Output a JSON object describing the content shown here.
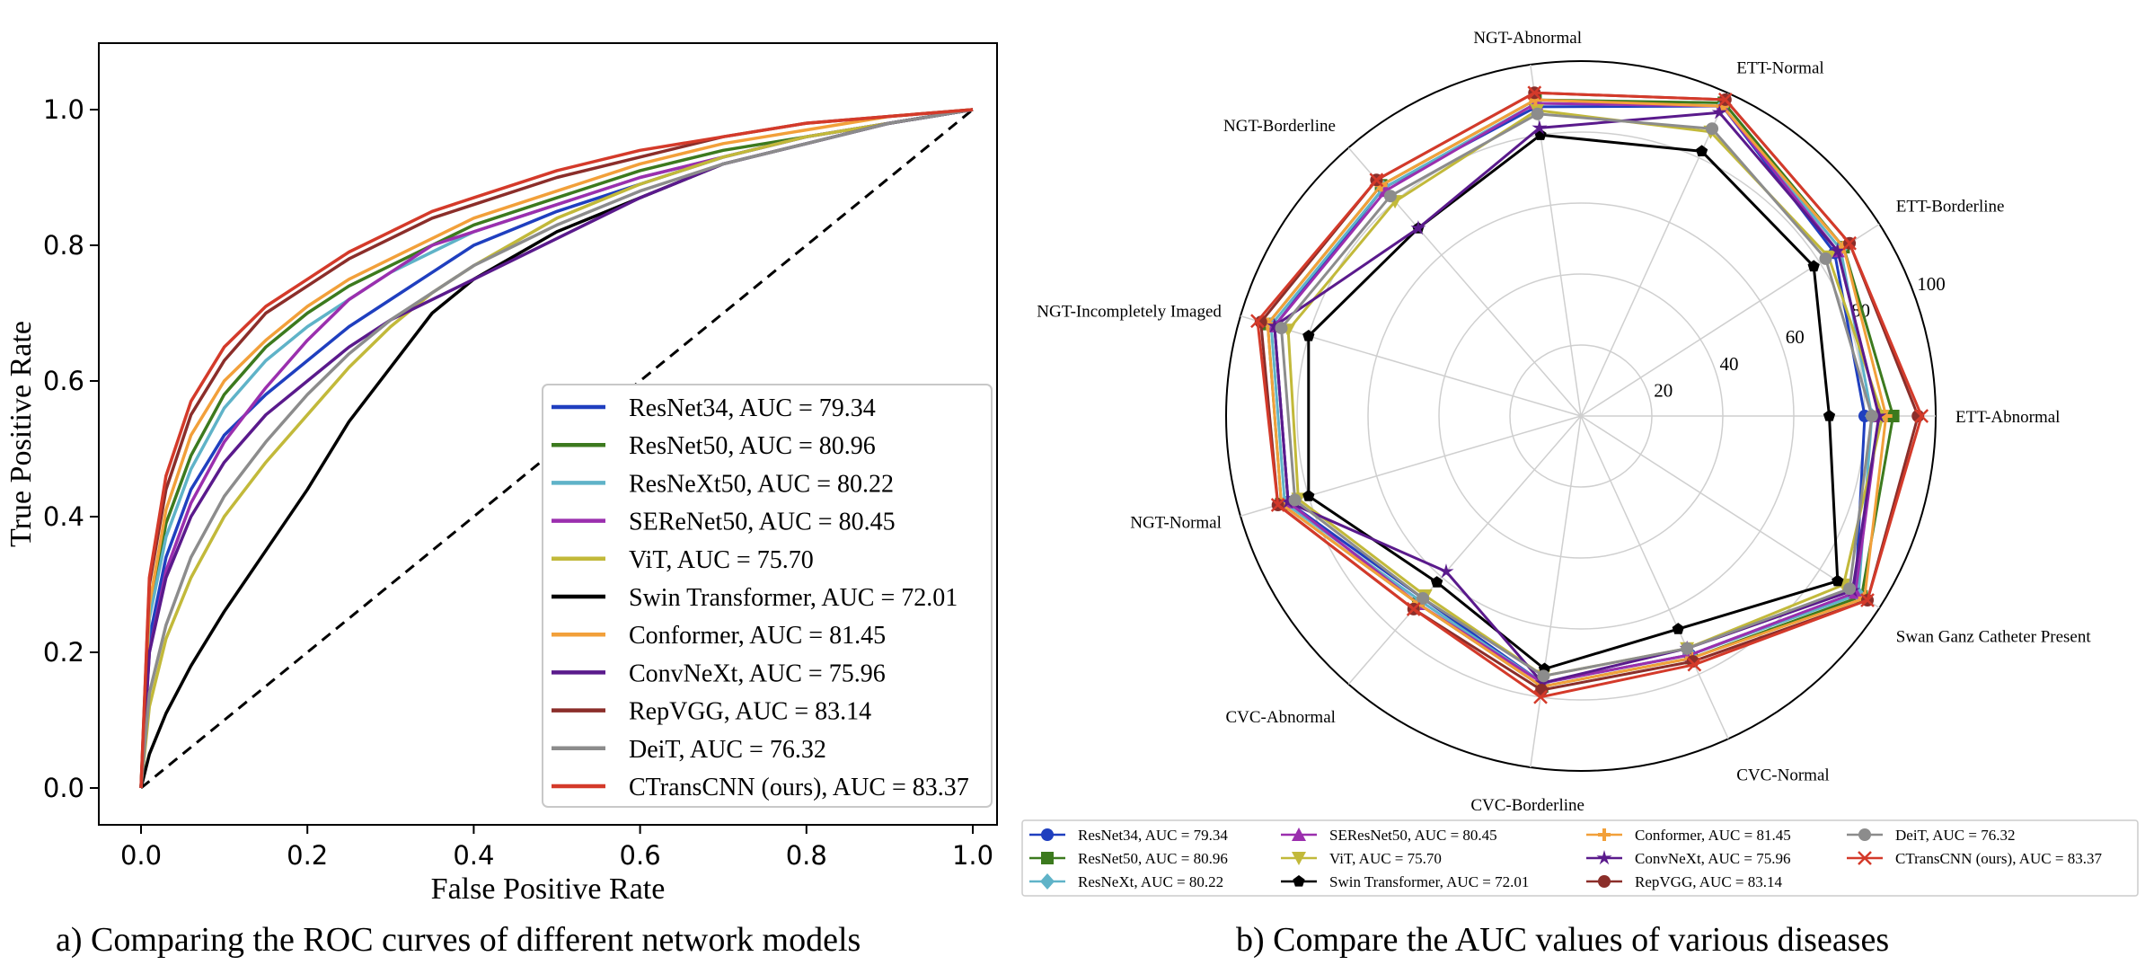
{
  "chart_data": [
    {
      "type": "line",
      "title": "",
      "xlabel": "False Positive Rate",
      "ylabel": "True Positive Rate",
      "xlim": [
        0,
        1
      ],
      "ylim": [
        0,
        1
      ],
      "xticks": [
        "0.0",
        "0.2",
        "0.4",
        "0.6",
        "0.8",
        "1.0"
      ],
      "yticks": [
        "0.0",
        "0.2",
        "0.4",
        "0.6",
        "0.8",
        "1.0"
      ],
      "grid": false,
      "legend_position": "bottom-right",
      "diagonal": {
        "x": [
          0,
          1
        ],
        "y": [
          0,
          1
        ],
        "style": "dashed",
        "color": "#000000"
      },
      "series": [
        {
          "name": "ResNet34, AUC = 79.34",
          "color": "#1f3fbf",
          "x": [
            0,
            0.01,
            0.03,
            0.06,
            0.1,
            0.15,
            0.2,
            0.25,
            0.3,
            0.35,
            0.4,
            0.5,
            0.6,
            0.7,
            0.8,
            0.9,
            1.0
          ],
          "y": [
            0,
            0.22,
            0.34,
            0.44,
            0.52,
            0.58,
            0.63,
            0.68,
            0.72,
            0.76,
            0.8,
            0.85,
            0.89,
            0.93,
            0.96,
            0.98,
            1.0
          ]
        },
        {
          "name": "ResNet50, AUC = 80.96",
          "color": "#3c7a1e",
          "x": [
            0,
            0.01,
            0.03,
            0.06,
            0.1,
            0.15,
            0.2,
            0.25,
            0.3,
            0.35,
            0.4,
            0.5,
            0.6,
            0.7,
            0.8,
            0.9,
            1.0
          ],
          "y": [
            0,
            0.26,
            0.39,
            0.49,
            0.58,
            0.65,
            0.7,
            0.74,
            0.77,
            0.8,
            0.83,
            0.87,
            0.91,
            0.94,
            0.96,
            0.98,
            1.0
          ]
        },
        {
          "name": "ResNeXt50, AUC = 80.22",
          "color": "#5fb3c8",
          "x": [
            0,
            0.01,
            0.03,
            0.06,
            0.1,
            0.15,
            0.2,
            0.25,
            0.3,
            0.35,
            0.4,
            0.5,
            0.6,
            0.7,
            0.8,
            0.9,
            1.0
          ],
          "y": [
            0,
            0.25,
            0.37,
            0.47,
            0.56,
            0.63,
            0.68,
            0.72,
            0.76,
            0.79,
            0.82,
            0.86,
            0.9,
            0.93,
            0.96,
            0.98,
            1.0
          ]
        },
        {
          "name": "SEReNet50, AUC = 80.45",
          "color": "#9b2fae",
          "x": [
            0,
            0.01,
            0.03,
            0.06,
            0.1,
            0.15,
            0.2,
            0.25,
            0.3,
            0.35,
            0.4,
            0.5,
            0.6,
            0.7,
            0.8,
            0.9,
            1.0
          ],
          "y": [
            0,
            0.2,
            0.32,
            0.42,
            0.51,
            0.59,
            0.66,
            0.72,
            0.76,
            0.8,
            0.82,
            0.86,
            0.9,
            0.93,
            0.96,
            0.98,
            1.0
          ]
        },
        {
          "name": "ViT, AUC = 75.70",
          "color": "#c2b93a",
          "x": [
            0,
            0.01,
            0.03,
            0.06,
            0.1,
            0.15,
            0.2,
            0.25,
            0.3,
            0.35,
            0.4,
            0.5,
            0.6,
            0.7,
            0.8,
            0.9,
            1.0
          ],
          "y": [
            0,
            0.12,
            0.22,
            0.31,
            0.4,
            0.48,
            0.55,
            0.62,
            0.68,
            0.73,
            0.77,
            0.84,
            0.89,
            0.93,
            0.96,
            0.98,
            1.0
          ]
        },
        {
          "name": "Swin Transformer, AUC = 72.01",
          "color": "#000000",
          "x": [
            0,
            0.01,
            0.03,
            0.06,
            0.1,
            0.15,
            0.2,
            0.25,
            0.3,
            0.35,
            0.4,
            0.5,
            0.6,
            0.7,
            0.8,
            0.9,
            1.0
          ],
          "y": [
            0,
            0.05,
            0.11,
            0.18,
            0.26,
            0.35,
            0.44,
            0.54,
            0.62,
            0.7,
            0.75,
            0.82,
            0.87,
            0.92,
            0.95,
            0.98,
            1.0
          ]
        },
        {
          "name": "Conformer, AUC = 81.45",
          "color": "#f2a03a",
          "x": [
            0,
            0.01,
            0.03,
            0.06,
            0.1,
            0.15,
            0.2,
            0.25,
            0.3,
            0.35,
            0.4,
            0.5,
            0.6,
            0.7,
            0.8,
            0.9,
            1.0
          ],
          "y": [
            0,
            0.27,
            0.41,
            0.52,
            0.6,
            0.66,
            0.71,
            0.75,
            0.78,
            0.81,
            0.84,
            0.88,
            0.92,
            0.95,
            0.97,
            0.99,
            1.0
          ]
        },
        {
          "name": "ConvNeXt, AUC = 75.96",
          "color": "#5a1a8c",
          "x": [
            0,
            0.01,
            0.03,
            0.06,
            0.1,
            0.15,
            0.2,
            0.25,
            0.3,
            0.35,
            0.4,
            0.5,
            0.6,
            0.7,
            0.8,
            0.9,
            1.0
          ],
          "y": [
            0,
            0.2,
            0.31,
            0.4,
            0.48,
            0.55,
            0.6,
            0.65,
            0.69,
            0.72,
            0.75,
            0.81,
            0.87,
            0.92,
            0.95,
            0.98,
            1.0
          ]
        },
        {
          "name": "RepVGG, AUC = 83.14",
          "color": "#8b2e2a",
          "x": [
            0,
            0.01,
            0.03,
            0.06,
            0.1,
            0.15,
            0.2,
            0.25,
            0.3,
            0.35,
            0.4,
            0.5,
            0.6,
            0.7,
            0.8,
            0.9,
            1.0
          ],
          "y": [
            0,
            0.3,
            0.44,
            0.55,
            0.63,
            0.7,
            0.74,
            0.78,
            0.81,
            0.84,
            0.86,
            0.9,
            0.93,
            0.96,
            0.98,
            0.99,
            1.0
          ]
        },
        {
          "name": "DeiT, AUC = 76.32",
          "color": "#8c8c8c",
          "x": [
            0,
            0.01,
            0.03,
            0.06,
            0.1,
            0.15,
            0.2,
            0.25,
            0.3,
            0.35,
            0.4,
            0.5,
            0.6,
            0.7,
            0.8,
            0.9,
            1.0
          ],
          "y": [
            0,
            0.14,
            0.24,
            0.34,
            0.43,
            0.51,
            0.58,
            0.64,
            0.69,
            0.73,
            0.77,
            0.83,
            0.88,
            0.92,
            0.95,
            0.98,
            1.0
          ]
        },
        {
          "name": "CTransCNN (ours), AUC = 83.37",
          "color": "#d43a2a",
          "x": [
            0,
            0.01,
            0.03,
            0.06,
            0.1,
            0.15,
            0.2,
            0.25,
            0.3,
            0.35,
            0.4,
            0.5,
            0.6,
            0.7,
            0.8,
            0.9,
            1.0
          ],
          "y": [
            0,
            0.31,
            0.46,
            0.57,
            0.65,
            0.71,
            0.75,
            0.79,
            0.82,
            0.85,
            0.87,
            0.91,
            0.94,
            0.96,
            0.98,
            0.99,
            1.0
          ]
        }
      ]
    },
    {
      "type": "radar",
      "title": "",
      "rmax": 100,
      "rticks": [
        "20",
        "40",
        "60",
        "80",
        "100"
      ],
      "legend_position": "bottom",
      "categories": [
        "ETT-Abnormal",
        "ETT-Borderline",
        "ETT-Normal",
        "NGT-Abnormal",
        "NGT-Borderline",
        "NGT-Incompletely Imaged",
        "NGT-Normal",
        "CVC-Abnormal",
        "CVC-Borderline",
        "CVC-Normal",
        "Swan Ganz Catheter Present"
      ],
      "series": [
        {
          "name": "ResNet34, AUC = 79.34",
          "color": "#1f3fbf",
          "marker": "circle",
          "values": [
            80,
            85,
            96,
            88,
            85,
            90,
            86,
            68,
            76,
            74,
            92
          ]
        },
        {
          "name": "ResNet50, AUC = 80.96",
          "color": "#3c7a1e",
          "marker": "square",
          "values": [
            88,
            88,
            97,
            90,
            86,
            92,
            88,
            70,
            77,
            75,
            94
          ]
        },
        {
          "name": "ResNeXt, AUC = 80.22",
          "color": "#5fb3c8",
          "marker": "diamond",
          "values": [
            82,
            87,
            96,
            89,
            85,
            91,
            87,
            69,
            76,
            74,
            93
          ]
        },
        {
          "name": "SEResNet50, AUC = 80.45",
          "color": "#9b2fae",
          "marker": "triangle-up",
          "values": [
            84,
            86,
            96,
            89,
            84,
            90,
            86,
            70,
            76,
            74,
            92
          ]
        },
        {
          "name": "ViT, AUC = 75.70",
          "color": "#c2b93a",
          "marker": "triangle-down",
          "values": [
            85,
            83,
            88,
            87,
            80,
            86,
            83,
            67,
            74,
            72,
            88
          ]
        },
        {
          "name": "Swin Transformer, AUC = 72.01",
          "color": "#000000",
          "marker": "pentagon",
          "values": [
            70,
            78,
            82,
            80,
            70,
            80,
            80,
            62,
            72,
            66,
            86
          ]
        },
        {
          "name": "Conformer, AUC = 81.45",
          "color": "#f2a03a",
          "marker": "plus",
          "values": [
            86,
            88,
            96,
            90,
            86,
            92,
            88,
            70,
            77,
            75,
            95
          ]
        },
        {
          "name": "ConvNeXt, AUC = 75.96",
          "color": "#5a1a8c",
          "marker": "star",
          "values": [
            84,
            86,
            94,
            82,
            70,
            90,
            86,
            58,
            76,
            72,
            91
          ]
        },
        {
          "name": "RepVGG, AUC = 83.14",
          "color": "#8b2e2a",
          "marker": "circle",
          "values": [
            95,
            90,
            98,
            92,
            88,
            94,
            89,
            72,
            78,
            76,
            96
          ]
        },
        {
          "name": "DeiT, AUC = 76.32",
          "color": "#8c8c8c",
          "marker": "circle",
          "values": [
            82,
            82,
            89,
            86,
            82,
            88,
            84,
            68,
            74,
            72,
            90
          ]
        },
        {
          "name": "CTransCNN (ours), AUC = 83.37",
          "color": "#d43a2a",
          "marker": "x",
          "values": [
            96,
            90,
            98,
            92,
            88,
            95,
            89,
            72,
            80,
            77,
            96
          ]
        }
      ]
    }
  ],
  "captions": {
    "left": "a) Comparing the ROC curves of different network models",
    "right": "b) Compare the AUC values of various diseases"
  }
}
